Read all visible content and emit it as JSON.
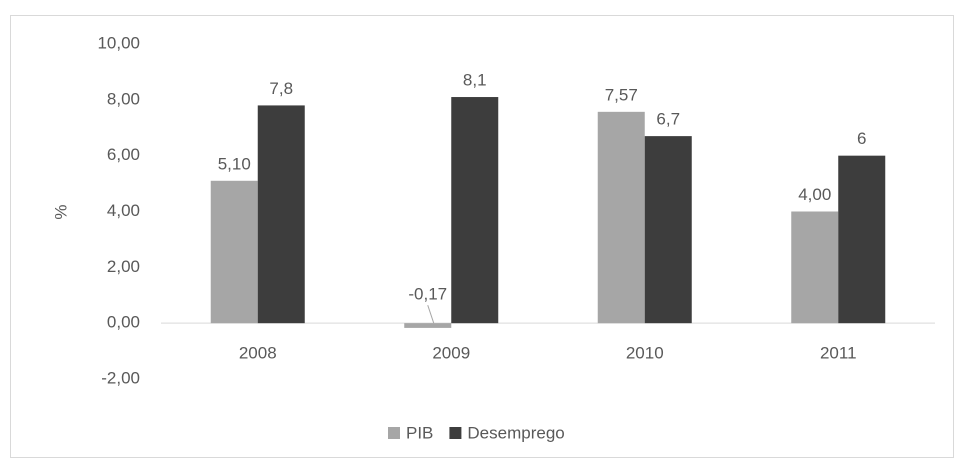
{
  "chart_data": {
    "type": "bar",
    "categories": [
      "2008",
      "2009",
      "2010",
      "2011"
    ],
    "series": [
      {
        "name": "PIB",
        "color": "#a6a6a6",
        "values": [
          5.1,
          -0.17,
          7.57,
          4.0
        ],
        "value_labels": [
          "5,10",
          "-0,17",
          "7,57",
          "4,00"
        ]
      },
      {
        "name": "Desemprego",
        "color": "#3d3d3d",
        "values": [
          7.8,
          8.1,
          6.7,
          6
        ],
        "value_labels": [
          "7,8",
          "8,1",
          "6,7",
          "6"
        ]
      }
    ],
    "y_label": "%",
    "ylim": [
      -2,
      10
    ],
    "yticks": [
      {
        "value": -2,
        "label": "-2,00"
      },
      {
        "value": 0,
        "label": "0,00"
      },
      {
        "value": 2,
        "label": "2,00"
      },
      {
        "value": 4,
        "label": "4,00"
      },
      {
        "value": 6,
        "label": "6,00"
      },
      {
        "value": 8,
        "label": "8,00"
      },
      {
        "value": 10,
        "label": "10,00"
      }
    ],
    "legend": "bottom"
  }
}
